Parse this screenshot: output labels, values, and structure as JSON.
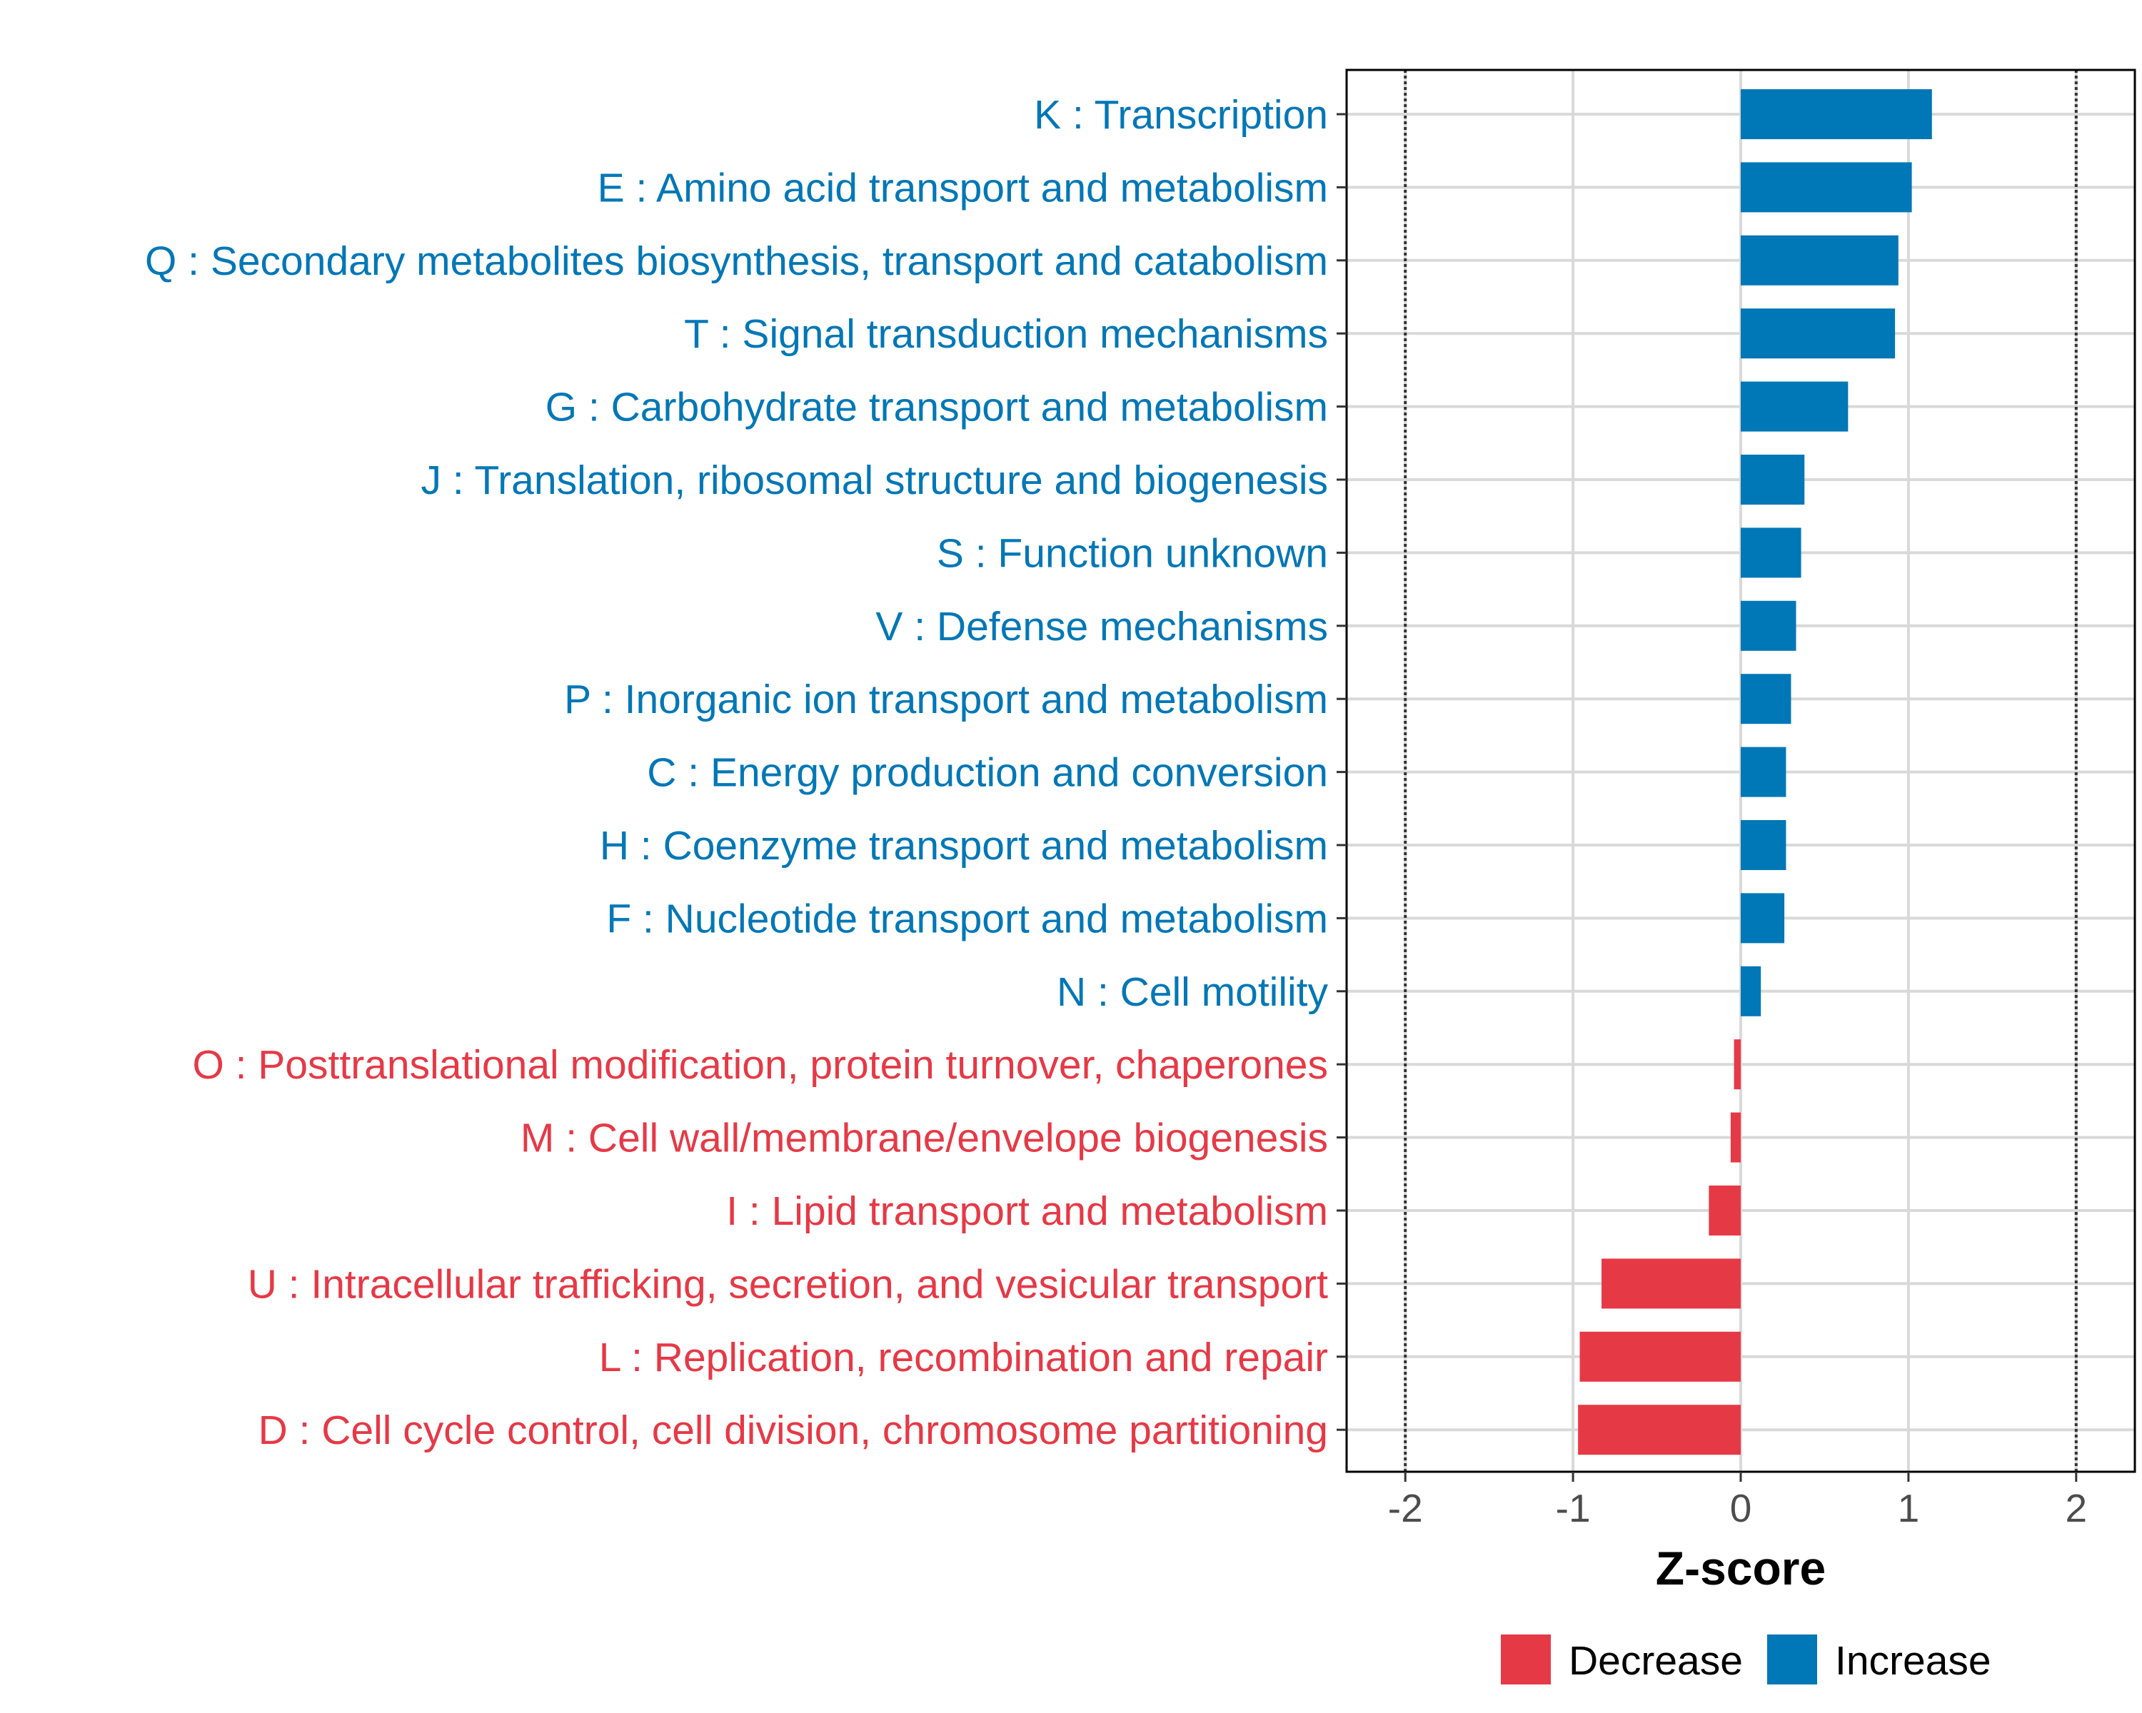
{
  "chart_data": {
    "type": "bar",
    "orientation": "horizontal",
    "title": "",
    "xlabel": "Z-score",
    "ylabel": "",
    "xlim": [
      -2.35,
      2.35
    ],
    "x_ticks": [
      -2,
      -1,
      0,
      1,
      2
    ],
    "x_tick_labels": [
      "-2",
      "-1",
      "0",
      "1",
      "2"
    ],
    "reference_lines": [
      -2,
      2
    ],
    "grid": true,
    "legend_position": "bottom",
    "colors": {
      "Decrease": "#E63946",
      "Increase": "#0077B6"
    },
    "legend": [
      {
        "name": "Decrease",
        "color": "#E63946"
      },
      {
        "name": "Increase",
        "color": "#0077B6"
      }
    ],
    "categories": [
      "K : Transcription",
      "E : Amino acid transport and metabolism",
      "Q : Secondary metabolites biosynthesis, transport and catabolism",
      "T : Signal transduction mechanisms",
      "G : Carbohydrate transport and metabolism",
      "J : Translation, ribosomal structure and biogenesis",
      "S : Function unknown",
      "V : Defense mechanisms",
      "P : Inorganic ion transport and metabolism",
      "C : Energy production and conversion",
      "H : Coenzyme transport and metabolism",
      "F : Nucleotide transport and metabolism",
      "N : Cell motility",
      "O : Posttranslational modification, protein turnover, chaperones",
      "M : Cell wall/membrane/envelope biogenesis",
      "I : Lipid transport and metabolism",
      "U : Intracellular trafficking, secretion, and vesicular transport",
      "L : Replication, recombination and repair",
      "D : Cell cycle control, cell division, chromosome partitioning"
    ],
    "values": [
      1.14,
      1.02,
      0.94,
      0.92,
      0.64,
      0.38,
      0.36,
      0.33,
      0.3,
      0.27,
      0.27,
      0.26,
      0.12,
      -0.04,
      -0.06,
      -0.19,
      -0.83,
      -0.96,
      -0.97
    ],
    "groups": [
      "Increase",
      "Increase",
      "Increase",
      "Increase",
      "Increase",
      "Increase",
      "Increase",
      "Increase",
      "Increase",
      "Increase",
      "Increase",
      "Increase",
      "Increase",
      "Decrease",
      "Decrease",
      "Decrease",
      "Decrease",
      "Decrease",
      "Decrease"
    ]
  }
}
